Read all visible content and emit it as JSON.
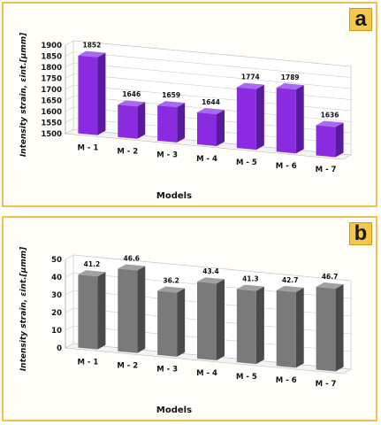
{
  "chart_data": [
    {
      "type": "bar",
      "panel_label": "a",
      "categories": [
        "M - 1",
        "M - 2",
        "M - 3",
        "M - 4",
        "M - 5",
        "M - 6",
        "M - 7"
      ],
      "values": [
        1852,
        1646,
        1659,
        1644,
        1774,
        1789,
        1636
      ],
      "data_labels": [
        "1852",
        "1646",
        "1659",
        "1644",
        "1774",
        "1789",
        "1636"
      ],
      "xlabel": "Models",
      "ylabel": "Intensity strain, εint.[μmm]",
      "ylim": [
        1500,
        1900
      ],
      "yticks": [
        1500,
        1550,
        1600,
        1650,
        1700,
        1750,
        1800,
        1850,
        1900
      ],
      "grid": true,
      "colors": {
        "front": "#8a2be2",
        "side": "#5a1a9e",
        "top": "#a86bef"
      }
    },
    {
      "type": "bar",
      "panel_label": "b",
      "categories": [
        "M - 1",
        "M - 2",
        "M - 3",
        "M - 4",
        "M - 5",
        "M - 6",
        "M - 7"
      ],
      "values": [
        41.2,
        46.6,
        36.2,
        43.4,
        41.3,
        42.7,
        46.7
      ],
      "data_labels": [
        "41.2",
        "46.6",
        "36.2",
        "43.4",
        "41.3",
        "42.7",
        "46.7"
      ],
      "xlabel": "Models",
      "ylabel": "Intensity strain, εint.[μmm]",
      "ylim": [
        0,
        50
      ],
      "yticks": [
        0,
        10,
        20,
        30,
        40,
        50
      ],
      "grid": true,
      "colors": {
        "front": "#7a7a7a",
        "side": "#4a4a4a",
        "top": "#a0a0a0"
      }
    }
  ]
}
